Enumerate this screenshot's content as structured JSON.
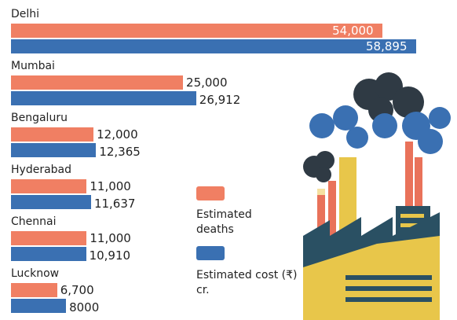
{
  "chart_data": {
    "type": "bar",
    "categories": [
      "Delhi",
      "Mumbai",
      "Bengaluru",
      "Hyderabad",
      "Chennai",
      "Lucknow"
    ],
    "series": [
      {
        "name": "Estimated deaths",
        "color": "#f07f63",
        "values": [
          54000,
          25000,
          12000,
          11000,
          11000,
          6700
        ],
        "value_labels": [
          "54,000",
          "25,000",
          "12,000",
          "11,000",
          "11,000",
          "6,700"
        ]
      },
      {
        "name": "Estimated cost (₹) cr.",
        "color": "#3a70b2",
        "values": [
          58895,
          26912,
          12365,
          11637,
          10910,
          8000
        ],
        "value_labels": [
          "58,895",
          "26,912",
          "12,365",
          "11,637",
          "10,910",
          "8000"
        ]
      }
    ]
  }
}
